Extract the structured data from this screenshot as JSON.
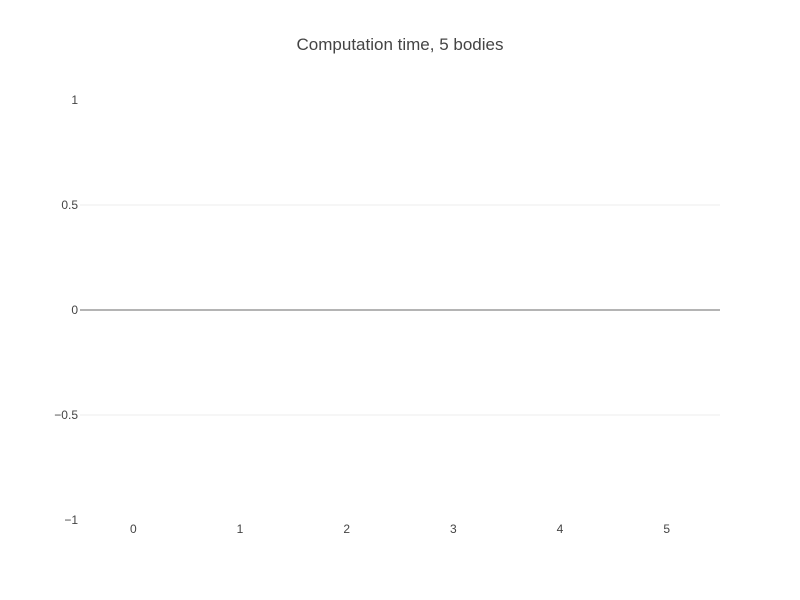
{
  "chart_data": {
    "type": "line",
    "title": "Computation time, 5 bodies",
    "xlabel": "",
    "ylabel": "",
    "x_ticks": [
      0,
      1,
      2,
      3,
      4,
      5
    ],
    "y_ticks": [
      -1,
      -0.5,
      0,
      0.5,
      1
    ],
    "xlim": [
      -0.5,
      5.5
    ],
    "ylim": [
      -1,
      1
    ],
    "grid": true,
    "series": []
  }
}
